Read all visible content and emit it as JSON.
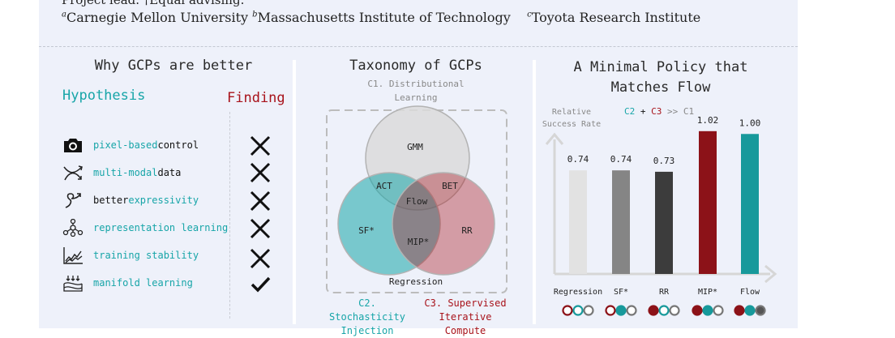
{
  "header": {
    "line1": "Project lead. †Equal advising.",
    "affil": [
      {
        "sup": "a",
        "name": "Carnegie Mellon University"
      },
      {
        "sup": "b",
        "name": "Massachusetts Institute of Technology"
      },
      {
        "sup": "c",
        "name": "Toyota Research Institute"
      }
    ]
  },
  "left_panel": {
    "title": "Why GCPs are better",
    "hypothesis_label": "Hypothesis",
    "finding_label": "Finding",
    "rows": [
      {
        "icon": "camera-icon",
        "teal": "pixel-based",
        "rest": " control",
        "finding": "cross"
      },
      {
        "icon": "multi-arrow-icon",
        "teal": "multi-modal",
        "rest": " data",
        "finding": "cross"
      },
      {
        "icon": "squiggle-arrow-icon",
        "pre": "better ",
        "teal": "expressivity",
        "finding": "cross"
      },
      {
        "icon": "network-icon",
        "teal": "representation learning",
        "finding": "cross"
      },
      {
        "icon": "line-chart-icon",
        "teal": "training stability",
        "finding": "cross"
      },
      {
        "icon": "manifold-icon",
        "teal": "manifold learning",
        "finding": "check"
      }
    ]
  },
  "middle_panel": {
    "title": "Taxonomy of GCPs",
    "c1_line1": "C1. Distributional",
    "c1_line2": "Learning",
    "labels": {
      "gmm": "GMM",
      "act": "ACT",
      "bet": "BET",
      "flow": "Flow",
      "sf": "SF*",
      "mip": "MIP*",
      "rr": "RR",
      "regression": "Regression"
    },
    "c2_line1": "C2. Stochasticity",
    "c2_line2": "Injection",
    "c3_line1": "C3. Supervised",
    "c3_line2": "Iterative Compute",
    "colors": {
      "c1": "#dadada",
      "c2": "#17a5a8",
      "c3": "#a8131b"
    }
  },
  "right_panel": {
    "title_line1": "A Minimal Policy that",
    "title_line2": "Matches Flow",
    "eq": {
      "c2": "C2",
      "plus": " + ",
      "c3": "C3",
      "rest": " >> C1"
    }
  },
  "chart_data": {
    "type": "bar",
    "ylabel": "Relative Success Rate",
    "categories": [
      "Regression",
      "SF*",
      "RR",
      "MIP*",
      "Flow"
    ],
    "values": [
      0.74,
      0.74,
      0.73,
      1.02,
      1.0
    ],
    "value_labels": [
      "0.74",
      "0.74",
      "0.73",
      "1.02",
      "1.00"
    ],
    "bar_colors": [
      "#e2e2e2",
      "#858585",
      "#3c3c3c",
      "#8c1218",
      "#17999b"
    ],
    "ylim": [
      0,
      1.1
    ],
    "grid": false,
    "component_dots": [
      [
        "#ffffff",
        "#ffffff",
        "#ffffff"
      ],
      [
        "#ffffff",
        "#17999b",
        "#ffffff"
      ],
      [
        "#8c1218",
        "#ffffff",
        "#ffffff"
      ],
      [
        "#8c1218",
        "#17999b",
        "#ffffff"
      ],
      [
        "#8c1218",
        "#17999b",
        "#555555"
      ]
    ],
    "dot_strokes": [
      "#8c1218",
      "#17999b",
      "#777777"
    ]
  }
}
